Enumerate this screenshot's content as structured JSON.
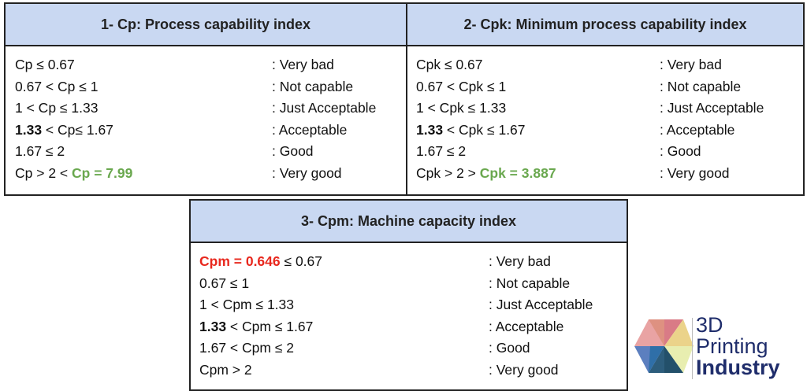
{
  "tables": [
    {
      "title": "1- Cp: Process capability index",
      "rows": [
        {
          "left": [
            {
              "t": "Cp ≤ 0.67"
            }
          ],
          "right": ": Very bad"
        },
        {
          "left": [
            {
              "t": "0.67 < Cp ≤ 1"
            }
          ],
          "right": ": Not capable"
        },
        {
          "left": [
            {
              "t": "1 < Cp ≤ 1.33"
            }
          ],
          "right": ": Just Acceptable"
        },
        {
          "left": [
            {
              "t": "1.33",
              "s": "b"
            },
            {
              "t": " < Cp≤ 1.67"
            }
          ],
          "right": ": Acceptable"
        },
        {
          "left": [
            {
              "t": "1.67 ≤ 2"
            }
          ],
          "right": ": Good"
        },
        {
          "left": [
            {
              "t": "Cp > 2 < "
            },
            {
              "t": "Cp = 7.99",
              "s": "g"
            }
          ],
          "right": ": Very good"
        }
      ]
    },
    {
      "title": "2- Cpk: Minimum process capability index",
      "rows": [
        {
          "left": [
            {
              "t": "Cpk ≤ 0.67"
            }
          ],
          "right": ": Very bad"
        },
        {
          "left": [
            {
              "t": "0.67 < Cpk ≤ 1"
            }
          ],
          "right": ": Not capable"
        },
        {
          "left": [
            {
              "t": "1 < Cpk ≤ 1.33"
            }
          ],
          "right": ": Just Acceptable"
        },
        {
          "left": [
            {
              "t": "1.33",
              "s": "b"
            },
            {
              "t": " < Cpk ≤ 1.67"
            }
          ],
          "right": ": Acceptable"
        },
        {
          "left": [
            {
              "t": "1.67  ≤ 2"
            }
          ],
          "right": ": Good"
        },
        {
          "left": [
            {
              "t": "Cpk > 2 > "
            },
            {
              "t": "Cpk = 3.887",
              "s": "g"
            }
          ],
          "right": ": Very good"
        }
      ]
    },
    {
      "title": "3- Cpm: Machine capacity index",
      "rows": [
        {
          "left": [
            {
              "t": "Cpm = 0.646",
              "s": "r"
            },
            {
              "t": " ≤ 0.67"
            }
          ],
          "right": ": Very bad"
        },
        {
          "left": [
            {
              "t": "0.67  ≤ 1"
            }
          ],
          "right": ": Not capable"
        },
        {
          "left": [
            {
              "t": "1 < Cpm ≤ 1.33"
            }
          ],
          "right": ": Just Acceptable"
        },
        {
          "left": [
            {
              "t": "1.33",
              "s": "b"
            },
            {
              "t": " < Cpm ≤ 1.67"
            }
          ],
          "right": ": Acceptable"
        },
        {
          "left": [
            {
              "t": "1.67 < Cpm ≤ 2"
            }
          ],
          "right": ": Good"
        },
        {
          "left": [
            {
              "t": "Cpm > 2"
            }
          ],
          "right": ": Very good"
        }
      ]
    }
  ],
  "logo": {
    "line1": "3D",
    "line2": "Printing",
    "line3": "Industry",
    "color": "#1f2d6b"
  },
  "colors": {
    "header_bg": "#c9d8f2",
    "highlight_good": "#6aa84f",
    "highlight_bad": "#e8281e"
  }
}
